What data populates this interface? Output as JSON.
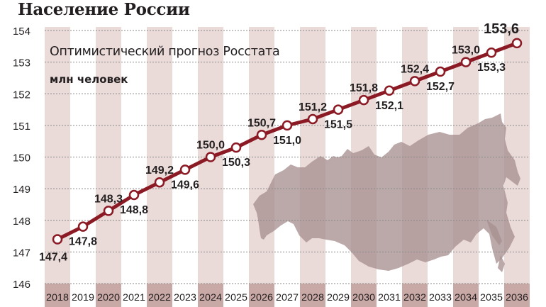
{
  "header": {
    "title": "Население России",
    "subtitle": "Оптимистический прогноз Росстата",
    "unit": "млн человек"
  },
  "colors": {
    "line": "#8b1a24",
    "band": "#eadbd9",
    "year_band": "#c9a9a6",
    "map": "#a8908f",
    "text": "#231f20",
    "grid": "#8a8a8a"
  },
  "chart_data": {
    "type": "line",
    "title": "Население России",
    "subtitle": "Оптимистический прогноз Росстата",
    "xlabel": "",
    "ylabel": "млн человек",
    "ylim": [
      146,
      154
    ],
    "yticks": [
      146,
      147,
      148,
      149,
      150,
      151,
      152,
      153,
      154
    ],
    "grid": true,
    "legend": null,
    "categories": [
      "2018",
      "2019",
      "2020",
      "2021",
      "2022",
      "2023",
      "2024",
      "2025",
      "2026",
      "2027",
      "2028",
      "2029",
      "2030",
      "2031",
      "2032",
      "2033",
      "2034",
      "2035",
      "2036"
    ],
    "series": [
      {
        "name": "Оптимистический прогноз Росстата",
        "values": [
          147.4,
          147.8,
          148.3,
          148.8,
          149.2,
          149.6,
          150.0,
          150.3,
          150.7,
          151.0,
          151.2,
          151.5,
          151.8,
          152.1,
          152.4,
          152.7,
          153.0,
          153.3,
          153.6
        ],
        "labels": [
          "147,4",
          "147,8",
          "148,3",
          "148,8",
          "149,2",
          "149,6",
          "150,0",
          "150,3",
          "150,7",
          "151,0",
          "151,2",
          "151,5",
          "151,8",
          "152,1",
          "152,4",
          "152,7",
          "153,0",
          "153,3",
          "153,6"
        ],
        "label_position": [
          "below",
          "below",
          "above",
          "below",
          "above",
          "below",
          "above",
          "below",
          "above",
          "below",
          "above",
          "below",
          "above",
          "below",
          "above",
          "below",
          "above",
          "below",
          "above"
        ]
      }
    ],
    "annotations": [
      "Background silhouette map of Russia"
    ]
  }
}
